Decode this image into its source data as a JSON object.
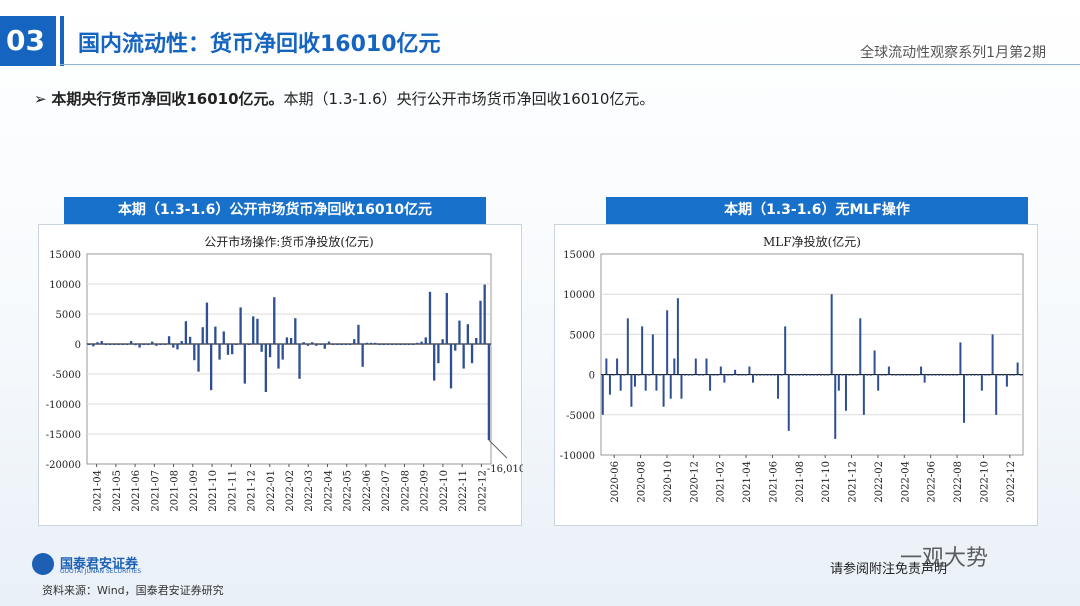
{
  "header": {
    "section_number": "03",
    "title": "国内流动性：货币净回收16010亿元",
    "series": "全球流动性观察系列1月第2期"
  },
  "summary": {
    "bold": "本期央行货币净回收16010亿元。",
    "text": "本期（1.3-1.6）央行公开市场货币净回收16010亿元。"
  },
  "left_panel": {
    "title": "本期（1.3-1.6）公开市场货币净回收16010亿元"
  },
  "right_panel": {
    "title": "本期（1.3-1.6）无MLF操作"
  },
  "footer": {
    "logo_cn": "国泰君安证券",
    "logo_en": "GUOTAI JUNAN SECURITIES",
    "source": "资料来源：Wind，国泰君安证券研究",
    "disclaimer": "请参阅附注免责声明",
    "watermark": "一观大势"
  },
  "colors": {
    "accent": "#1565c0",
    "bar": "#2e4f94"
  },
  "chart_data": [
    {
      "type": "bar",
      "title": "公开市场操作:货币净投放(亿元)",
      "ylim": [
        -20000,
        15000
      ],
      "yticks": [
        15000,
        10000,
        5000,
        0,
        -5000,
        -10000,
        -15000,
        -20000
      ],
      "xticks": [
        "2021-04",
        "2021-05",
        "2021-06",
        "2021-07",
        "2021-08",
        "2021-09",
        "2021-10",
        "2021-11",
        "2021-12",
        "2022-01",
        "2022-02",
        "2022-03",
        "2022-04",
        "2022-05",
        "2022-06",
        "2022-07",
        "2022-08",
        "2022-09",
        "2022-10",
        "2022-11",
        "2022-12"
      ],
      "annotation": "-16,010",
      "grid": true,
      "values": [
        0,
        -400,
        300,
        500,
        0,
        0,
        0,
        0,
        0,
        0,
        500,
        -200,
        -600,
        0,
        0,
        400,
        -300,
        0,
        0,
        1300,
        -600,
        -900,
        500,
        3800,
        1200,
        -2700,
        -4600,
        2800,
        6900,
        -7700,
        2900,
        -2600,
        2100,
        -1800,
        -1700,
        0,
        6100,
        -6600,
        0,
        4600,
        4200,
        -1300,
        -8000,
        -2200,
        7800,
        -4100,
        -2600,
        1100,
        1000,
        4300,
        -5800,
        300,
        -300,
        300,
        -300,
        0,
        -800,
        400,
        -100,
        0,
        0,
        0,
        0,
        800,
        3200,
        -3800,
        200,
        200,
        200,
        0,
        0,
        0,
        0,
        0,
        0,
        0,
        0,
        0,
        200,
        400,
        1100,
        8700,
        -6100,
        -3200,
        800,
        8500,
        -7400,
        -1100,
        3900,
        -4100,
        3300,
        -3200,
        1000,
        7200,
        9900,
        -16010
      ]
    },
    {
      "type": "bar",
      "title": "MLF净投放(亿元)",
      "ylim": [
        -10000,
        15000
      ],
      "yticks": [
        15000,
        10000,
        5000,
        0,
        -5000,
        -10000
      ],
      "xticks": [
        "2020-06",
        "2020-08",
        "2020-10",
        "2020-12",
        "2021-02",
        "2021-04",
        "2021-06",
        "2021-08",
        "2021-10",
        "2021-12",
        "2022-02",
        "2022-04",
        "2022-06",
        "2022-08",
        "2022-10",
        "2022-12"
      ],
      "grid": true,
      "values": [
        -5000,
        2000,
        -2500,
        0,
        2000,
        -2000,
        0,
        7000,
        -4000,
        -1500,
        0,
        6000,
        -2000,
        0,
        5000,
        -2000,
        0,
        -4000,
        8000,
        -3000,
        2000,
        9500,
        -3000,
        0,
        0,
        0,
        2000,
        0,
        0,
        2000,
        -2000,
        0,
        0,
        1000,
        -1000,
        0,
        0,
        600,
        0,
        0,
        0,
        1000,
        -1000,
        0,
        0,
        0,
        0,
        0,
        0,
        -3000,
        0,
        6000,
        -7000,
        0,
        0,
        0,
        0,
        0,
        0,
        0,
        0,
        0,
        0,
        0,
        10000,
        -8000,
        -2000,
        0,
        -4500,
        0,
        0,
        0,
        7000,
        -5000,
        0,
        0,
        3000,
        -2000,
        0,
        0,
        1000,
        0,
        0,
        0,
        0,
        0,
        0,
        0,
        0,
        1000,
        -1000,
        0,
        0,
        0,
        0,
        0,
        0,
        0,
        0,
        0,
        4000,
        -6000,
        0,
        0,
        0,
        0,
        -2000,
        0,
        0,
        5000,
        -5000,
        0,
        0,
        -1500,
        0,
        0,
        1500,
        0
      ]
    }
  ]
}
